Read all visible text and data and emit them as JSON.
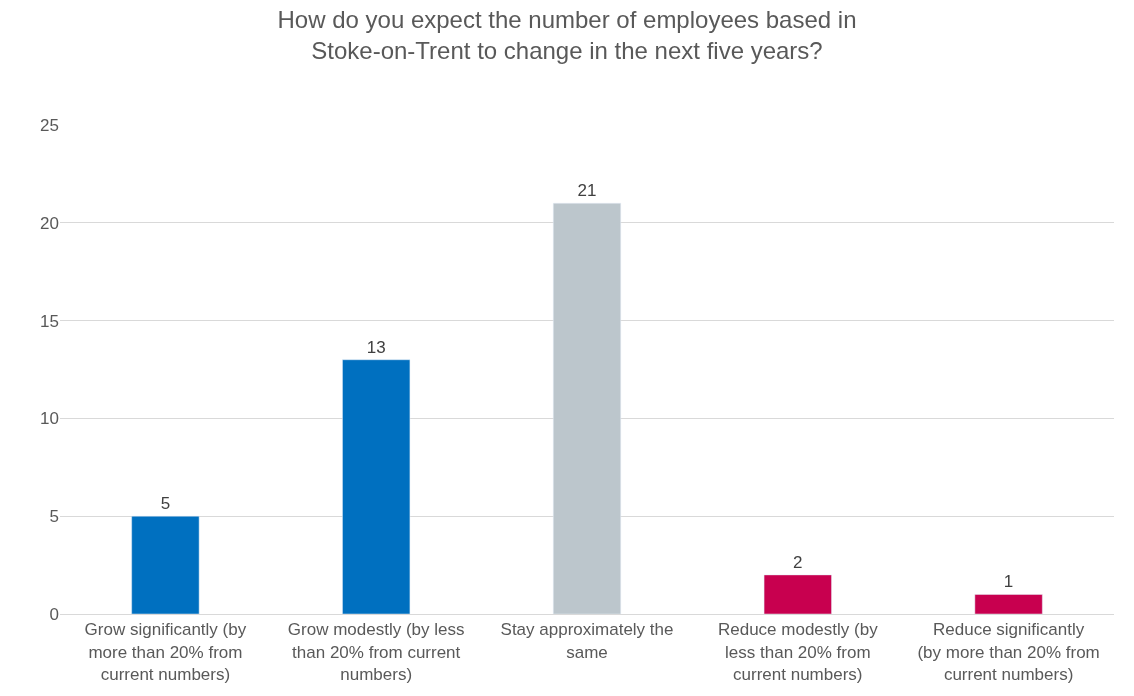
{
  "chart_data": {
    "type": "bar",
    "title": "How do you expect the number of employees based in Stoke-on-Trent to change in the next five years?",
    "categories": [
      "Grow significantly (by more than 20% from current numbers)",
      "Grow modestly (by less than 20% from current numbers)",
      "Stay approximately the same",
      "Reduce modestly (by less than 20% from current numbers)",
      "Reduce significantly (by more than 20% from current numbers)"
    ],
    "values": [
      5,
      13,
      21,
      2,
      1
    ],
    "colors": [
      "#0070c0",
      "#0070c0",
      "#bcc6cc",
      "#c8004f",
      "#c8004f"
    ],
    "ylim": [
      0,
      25
    ],
    "yticks": [
      0,
      5,
      10,
      15,
      20,
      25
    ],
    "grid": "y",
    "data_labels": true
  }
}
